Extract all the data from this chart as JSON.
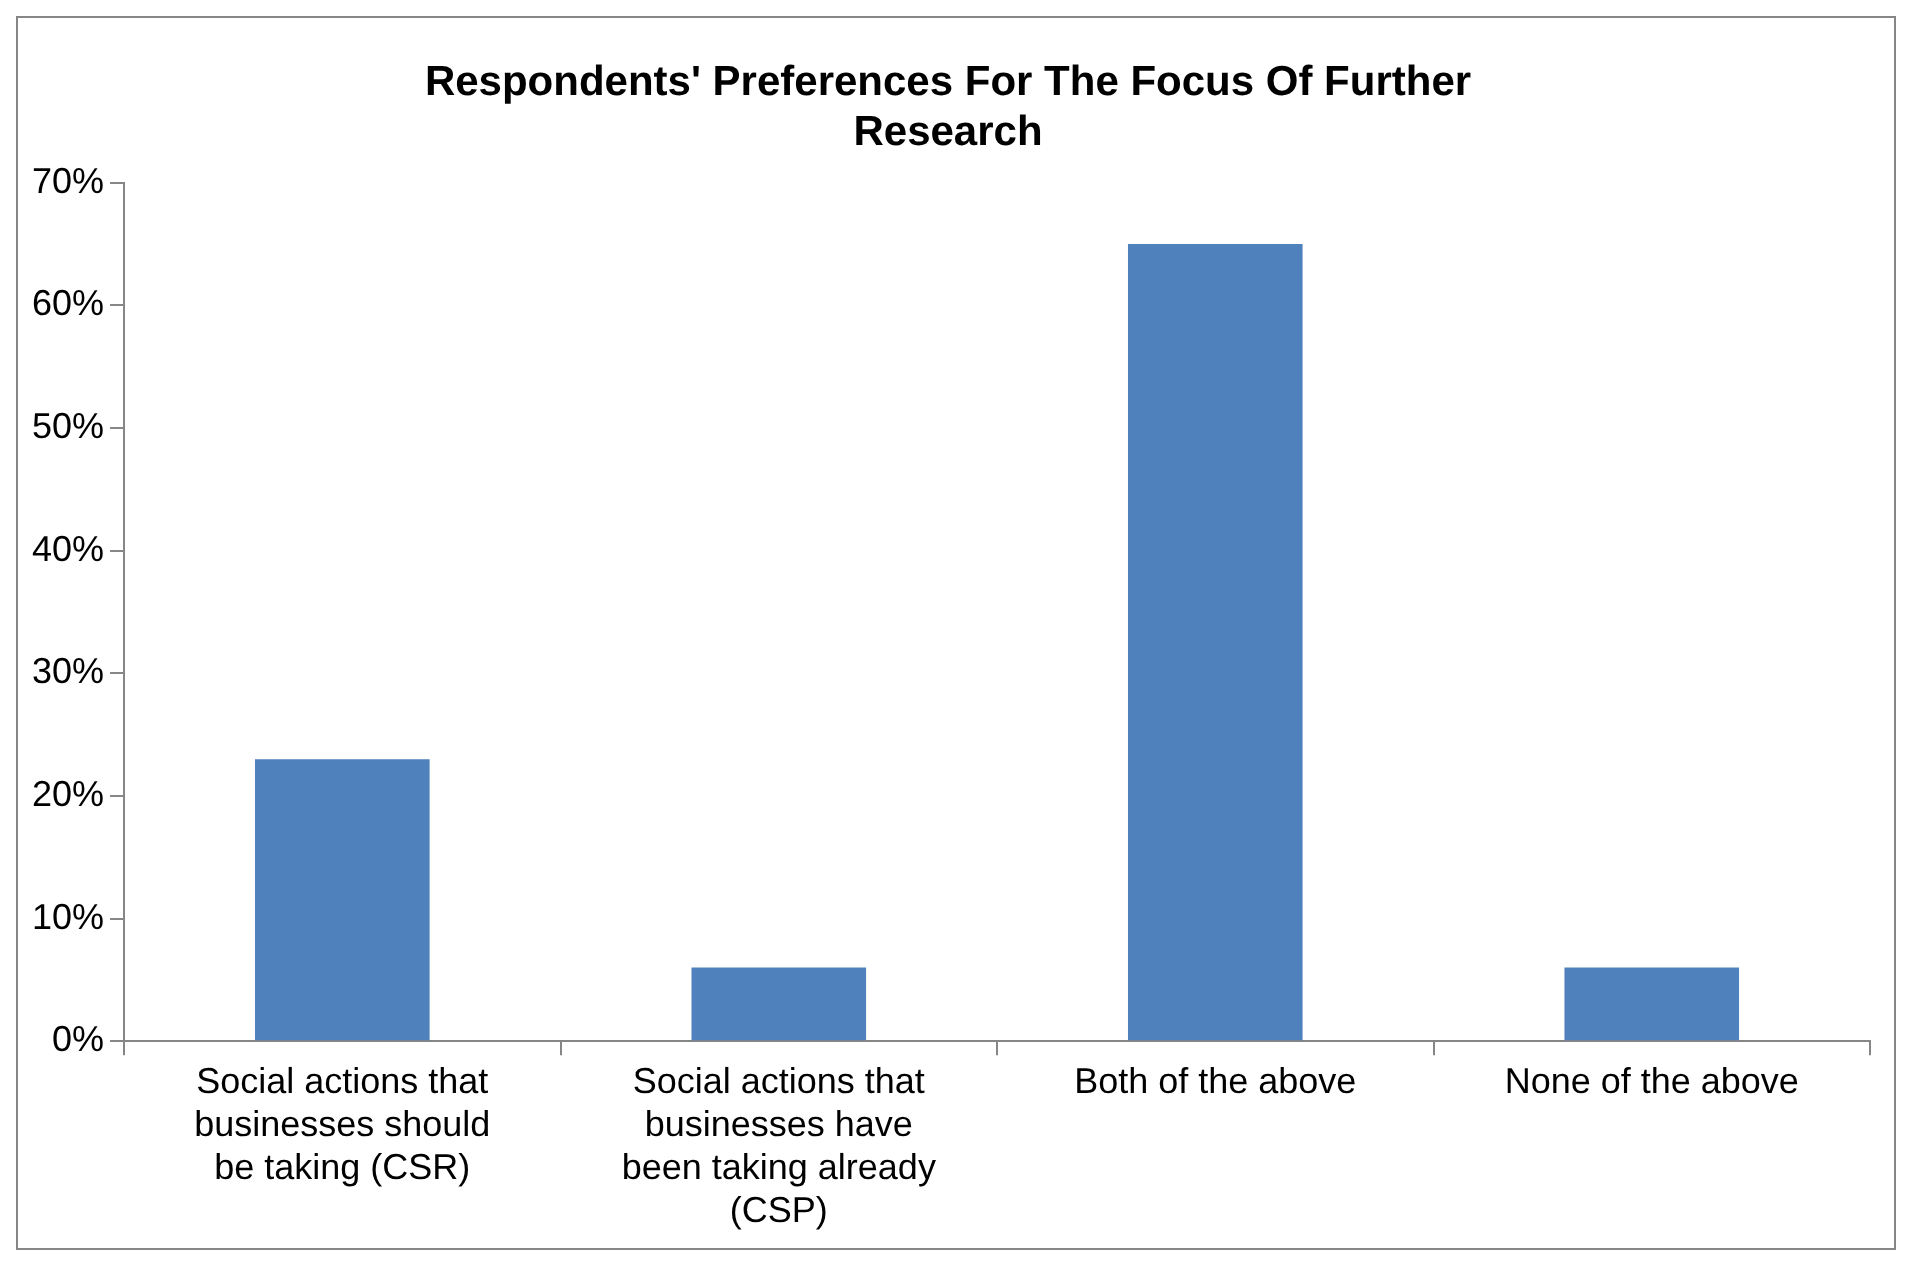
{
  "chart_data": {
    "type": "bar",
    "title": "Respondents' Preferences For The Focus Of Further Research",
    "categories": [
      "Social actions that businesses should be taking (CSR)",
      "Social actions that businesses have been taking already (CSP)",
      "Both of the above",
      "None of the above"
    ],
    "values": [
      23,
      6,
      65,
      6
    ],
    "color": "#4f81bd",
    "ylim": [
      0,
      70
    ],
    "yticks": [
      {
        "value": 0,
        "label": "0%"
      },
      {
        "value": 10,
        "label": "10%"
      },
      {
        "value": 20,
        "label": "20%"
      },
      {
        "value": 30,
        "label": "30%"
      },
      {
        "value": 40,
        "label": "40%"
      },
      {
        "value": 50,
        "label": "50%"
      },
      {
        "value": 60,
        "label": "60%"
      },
      {
        "value": 70,
        "label": "70%"
      }
    ],
    "grid": false,
    "legend": false
  }
}
